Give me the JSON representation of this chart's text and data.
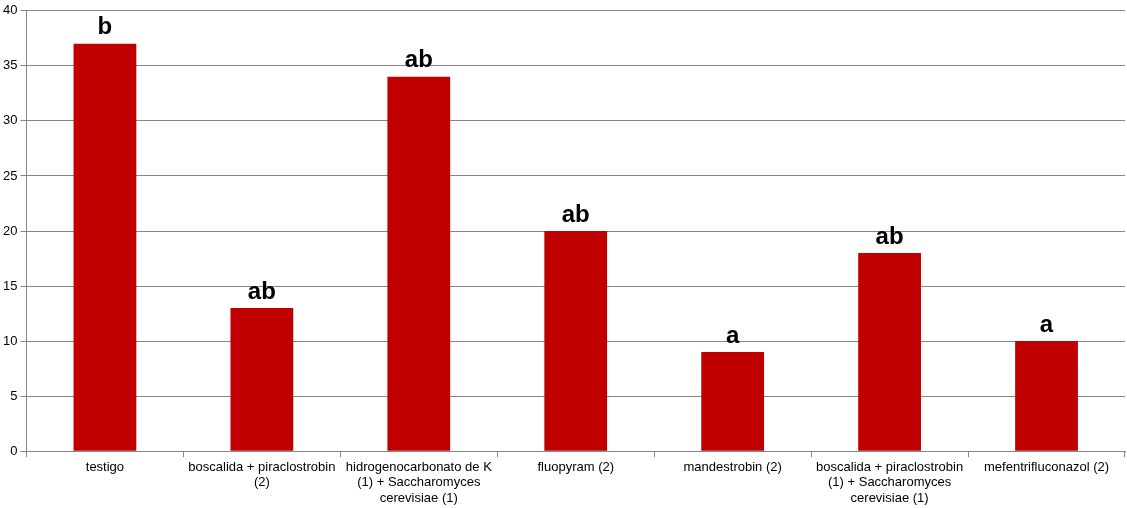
{
  "chart_data": {
    "type": "bar",
    "categories": [
      "testigo",
      "boscalida + piraclostrobin (2)",
      "hidrogenocarbonato de K (1) + Saccharomyces cerevisiae (1)",
      "fluopyram (2)",
      "mandestrobin (2)",
      "boscalida + piraclostrobin (1) + Saccharomyces cerevisiae (1)",
      "mefentrifluconazol (2)"
    ],
    "values": [
      37,
      13,
      34,
      20,
      9,
      18,
      10
    ],
    "value_labels": [
      "b",
      "ab",
      "ab",
      "ab",
      "a",
      "ab",
      "a"
    ],
    "color": "#c00000",
    "ylim": [
      0,
      40
    ],
    "yticks": [
      0,
      5,
      10,
      15,
      20,
      25,
      30,
      35,
      40
    ],
    "grid": "y"
  }
}
